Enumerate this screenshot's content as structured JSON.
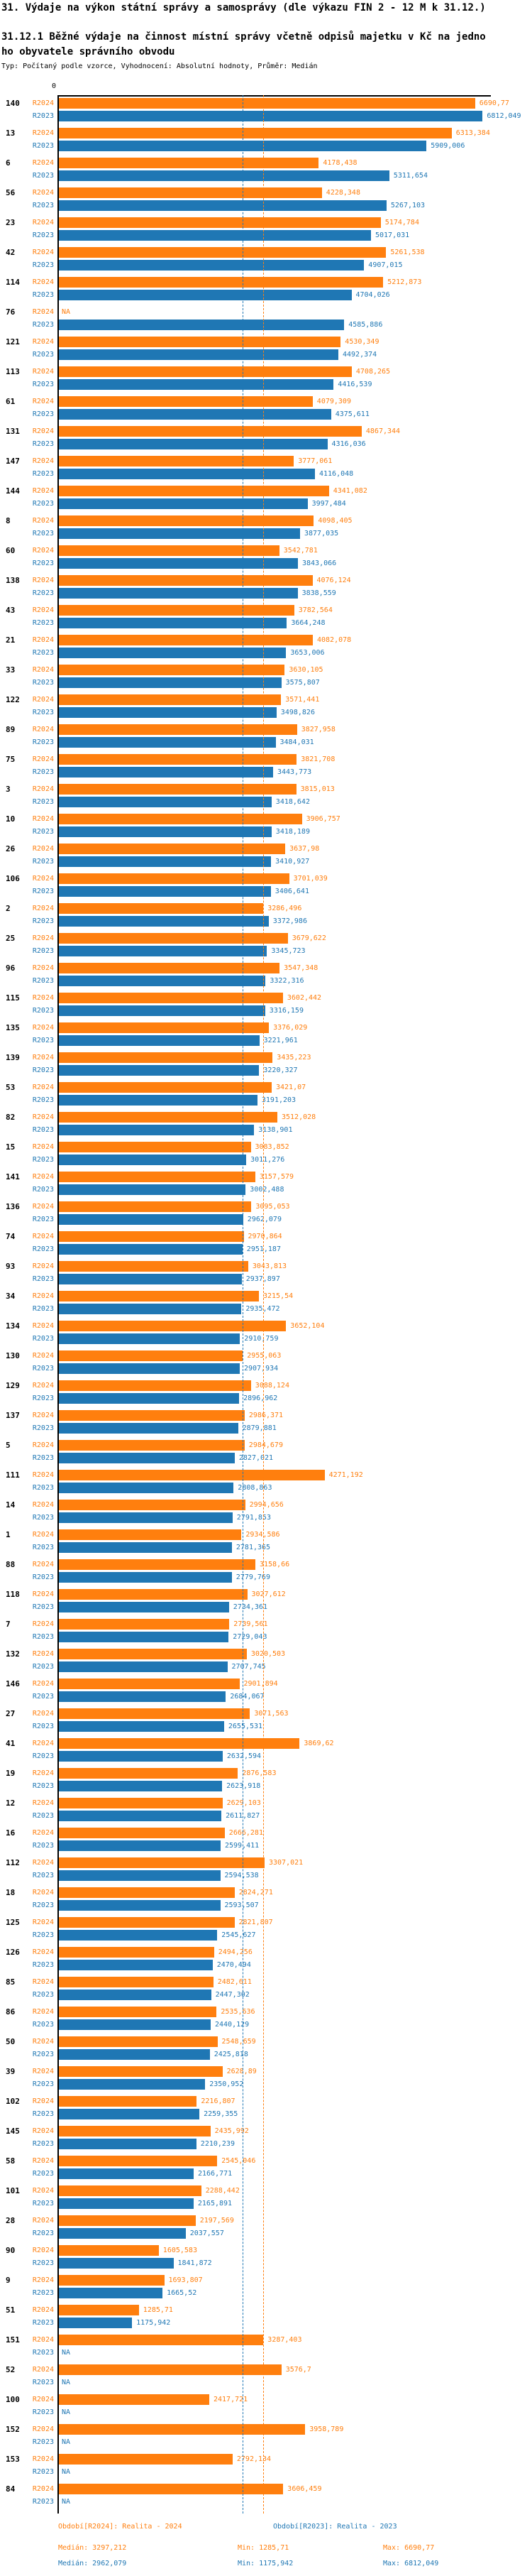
{
  "title": "31. Výdaje na výkon státní správy a samosprávy (dle výkazu FIN 2 - 12 M k 31.12.)",
  "subtitle_line1": "31.12.1 Běžné výdaje na činnost místní správy včetně odpisů majetku v Kč na jedno",
  "subtitle_line2": "ho obyvatele správního obvodu",
  "meta": "Typ: Počítaný podle vzorce, Vyhodnocení: Absolutní hodnoty, Průměr: Medián",
  "axis": {
    "zero_label": "0"
  },
  "colors": {
    "r2024": "#ff7f0e",
    "r2023": "#1f77b4",
    "axis": "#000000"
  },
  "footer": {
    "periods": [
      {
        "series": "r2024",
        "label": "Období[R2024]: Realita - 2024"
      },
      {
        "series": "r2023",
        "label": "Období[R2023]: Realita - 2023"
      }
    ],
    "stats": [
      {
        "series": "r2024",
        "median": "Medián: 3297,212",
        "min": "Min: 1285,71",
        "max": "Max: 6690,77"
      },
      {
        "series": "r2023",
        "median": "Medián: 2962,079",
        "min": "Min: 1175,942",
        "max": "Max: 6812,049"
      }
    ]
  },
  "chart_data": {
    "type": "bar",
    "orientation": "horizontal",
    "series_labels": [
      "R2024",
      "R2023"
    ],
    "legend_position": "bottom",
    "grid": false,
    "x_axis": {
      "origin_label": "0",
      "max_hint": 6812.049
    },
    "medians": {
      "r2024": 3297.212,
      "r2023": 2962.079
    },
    "na_text": "NA",
    "groups": [
      {
        "id": "140",
        "r2024": "6690,77",
        "r2023": "6812,049"
      },
      {
        "id": "13",
        "r2024": "6313,384",
        "r2023": "5909,006"
      },
      {
        "id": "6",
        "r2024": "4178,438",
        "r2023": "5311,654"
      },
      {
        "id": "56",
        "r2024": "4228,348",
        "r2023": "5267,103"
      },
      {
        "id": "23",
        "r2024": "5174,784",
        "r2023": "5017,031"
      },
      {
        "id": "42",
        "r2024": "5261,538",
        "r2023": "4907,015"
      },
      {
        "id": "114",
        "r2024": "5212,873",
        "r2023": "4704,026"
      },
      {
        "id": "76",
        "r2024": "NA",
        "r2023": "4585,886"
      },
      {
        "id": "121",
        "r2024": "4530,349",
        "r2023": "4492,374"
      },
      {
        "id": "113",
        "r2024": "4708,265",
        "r2023": "4416,539"
      },
      {
        "id": "61",
        "r2024": "4079,309",
        "r2023": "4375,611"
      },
      {
        "id": "131",
        "r2024": "4867,344",
        "r2023": "4316,036"
      },
      {
        "id": "147",
        "r2024": "3777,061",
        "r2023": "4116,048"
      },
      {
        "id": "144",
        "r2024": "4341,082",
        "r2023": "3997,484"
      },
      {
        "id": "8",
        "r2024": "4098,405",
        "r2023": "3877,035"
      },
      {
        "id": "60",
        "r2024": "3542,781",
        "r2023": "3843,066"
      },
      {
        "id": "138",
        "r2024": "4076,124",
        "r2023": "3838,559"
      },
      {
        "id": "43",
        "r2024": "3782,564",
        "r2023": "3664,248"
      },
      {
        "id": "21",
        "r2024": "4082,078",
        "r2023": "3653,006"
      },
      {
        "id": "33",
        "r2024": "3630,105",
        "r2023": "3575,807"
      },
      {
        "id": "122",
        "r2024": "3571,441",
        "r2023": "3498,826"
      },
      {
        "id": "89",
        "r2024": "3827,958",
        "r2023": "3484,031"
      },
      {
        "id": "75",
        "r2024": "3821,708",
        "r2023": "3443,773"
      },
      {
        "id": "3",
        "r2024": "3815,013",
        "r2023": "3418,642"
      },
      {
        "id": "10",
        "r2024": "3906,757",
        "r2023": "3418,189"
      },
      {
        "id": "26",
        "r2024": "3637,98",
        "r2023": "3410,927"
      },
      {
        "id": "106",
        "r2024": "3701,039",
        "r2023": "3406,641"
      },
      {
        "id": "2",
        "r2024": "3286,496",
        "r2023": "3372,986"
      },
      {
        "id": "25",
        "r2024": "3679,622",
        "r2023": "3345,723"
      },
      {
        "id": "96",
        "r2024": "3547,348",
        "r2023": "3322,316"
      },
      {
        "id": "115",
        "r2024": "3602,442",
        "r2023": "3316,159"
      },
      {
        "id": "135",
        "r2024": "3376,029",
        "r2023": "3221,961"
      },
      {
        "id": "139",
        "r2024": "3435,223",
        "r2023": "3220,327"
      },
      {
        "id": "53",
        "r2024": "3421,07",
        "r2023": "3191,203"
      },
      {
        "id": "82",
        "r2024": "3512,028",
        "r2023": "3138,901"
      },
      {
        "id": "15",
        "r2024": "3083,852",
        "r2023": "3011,276"
      },
      {
        "id": "141",
        "r2024": "3157,579",
        "r2023": "3002,488"
      },
      {
        "id": "136",
        "r2024": "3095,053",
        "r2023": "2962,079"
      },
      {
        "id": "74",
        "r2024": "2970,864",
        "r2023": "2951,187"
      },
      {
        "id": "93",
        "r2024": "3043,813",
        "r2023": "2937,897"
      },
      {
        "id": "34",
        "r2024": "3215,54",
        "r2023": "2935,472"
      },
      {
        "id": "134",
        "r2024": "3652,104",
        "r2023": "2910,759"
      },
      {
        "id": "130",
        "r2024": "2955,063",
        "r2023": "2907,934"
      },
      {
        "id": "129",
        "r2024": "3088,124",
        "r2023": "2896,962"
      },
      {
        "id": "137",
        "r2024": "2986,371",
        "r2023": "2879,881"
      },
      {
        "id": "5",
        "r2024": "2984,679",
        "r2023": "2827,021"
      },
      {
        "id": "111",
        "r2024": "4271,192",
        "r2023": "2808,863"
      },
      {
        "id": "14",
        "r2024": "2994,656",
        "r2023": "2791,853"
      },
      {
        "id": "1",
        "r2024": "2934,586",
        "r2023": "2781,365"
      },
      {
        "id": "88",
        "r2024": "3158,66",
        "r2023": "2779,769"
      },
      {
        "id": "118",
        "r2024": "3027,612",
        "r2023": "2734,361"
      },
      {
        "id": "7",
        "r2024": "2739,561",
        "r2023": "2729,043"
      },
      {
        "id": "132",
        "r2024": "3020,503",
        "r2023": "2707,745"
      },
      {
        "id": "146",
        "r2024": "2901,894",
        "r2023": "2684,067"
      },
      {
        "id": "27",
        "r2024": "3071,563",
        "r2023": "2655,531"
      },
      {
        "id": "41",
        "r2024": "3869,62",
        "r2023": "2632,594"
      },
      {
        "id": "19",
        "r2024": "2876,583",
        "r2023": "2623,918"
      },
      {
        "id": "12",
        "r2024": "2629,103",
        "r2023": "2611,827"
      },
      {
        "id": "16",
        "r2024": "2666,281",
        "r2023": "2599,411"
      },
      {
        "id": "112",
        "r2024": "3307,021",
        "r2023": "2594,538"
      },
      {
        "id": "18",
        "r2024": "2824,271",
        "r2023": "2593,507"
      },
      {
        "id": "125",
        "r2024": "2821,807",
        "r2023": "2545,627"
      },
      {
        "id": "126",
        "r2024": "2494,256",
        "r2023": "2470,494"
      },
      {
        "id": "85",
        "r2024": "2482,611",
        "r2023": "2447,302"
      },
      {
        "id": "86",
        "r2024": "2535,636",
        "r2023": "2440,129"
      },
      {
        "id": "50",
        "r2024": "2548,659",
        "r2023": "2425,818"
      },
      {
        "id": "39",
        "r2024": "2628,89",
        "r2023": "2350,952"
      },
      {
        "id": "102",
        "r2024": "2216,807",
        "r2023": "2259,355"
      },
      {
        "id": "145",
        "r2024": "2435,992",
        "r2023": "2210,239"
      },
      {
        "id": "58",
        "r2024": "2545,046",
        "r2023": "2166,771"
      },
      {
        "id": "101",
        "r2024": "2288,442",
        "r2023": "2165,891"
      },
      {
        "id": "28",
        "r2024": "2197,569",
        "r2023": "2037,557"
      },
      {
        "id": "90",
        "r2024": "1605,583",
        "r2023": "1841,872"
      },
      {
        "id": "9",
        "r2024": "1693,807",
        "r2023": "1665,52"
      },
      {
        "id": "51",
        "r2024": "1285,71",
        "r2023": "1175,942"
      },
      {
        "id": "151",
        "r2024": "3287,403",
        "r2023": "NA"
      },
      {
        "id": "52",
        "r2024": "3576,7",
        "r2023": "NA"
      },
      {
        "id": "100",
        "r2024": "2417,721",
        "r2023": "NA"
      },
      {
        "id": "152",
        "r2024": "3958,789",
        "r2023": "NA"
      },
      {
        "id": "153",
        "r2024": "2792,134",
        "r2023": "NA"
      },
      {
        "id": "84",
        "r2024": "3606,459",
        "r2023": "NA"
      }
    ]
  }
}
